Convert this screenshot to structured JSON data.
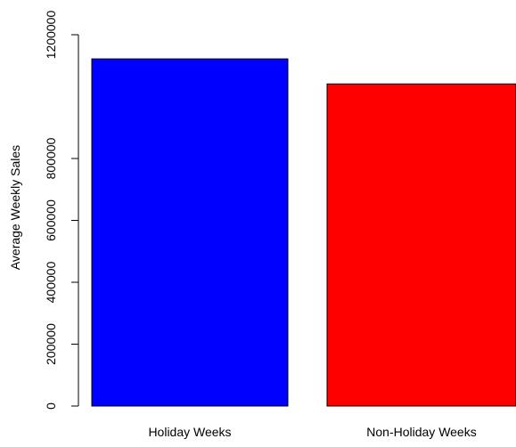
{
  "chart_data": {
    "type": "bar",
    "title": "",
    "xlabel": "",
    "ylabel": "Average Weekly Sales",
    "categories": [
      "Holiday Weeks",
      "Non-Holiday Weeks"
    ],
    "values": [
      1122000,
      1041000
    ],
    "bar_colors": [
      "#0000ff",
      "#ff0000"
    ],
    "ylim": [
      0,
      1200000
    ],
    "y_ticks": [
      0,
      200000,
      400000,
      600000,
      800000,
      1200000
    ],
    "y_tick_labels": [
      "0",
      "200000",
      "400000",
      "600000",
      "800000",
      "1200000"
    ],
    "grid": false,
    "legend": "none"
  }
}
